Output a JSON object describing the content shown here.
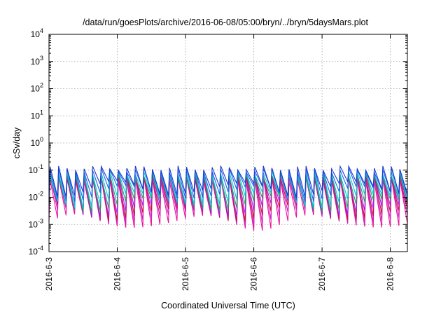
{
  "chart_data": {
    "type": "line",
    "title": "/data/run/goesPlots/archive/2016-06-08/05:00/bryn/../bryn/5daysMars.plot",
    "xlabel": "Coordinated Universal Time (UTC)",
    "ylabel": "cSv/day",
    "y_scale": "log",
    "ylim": [
      0.0001,
      10000
    ],
    "y_ticks": [
      {
        "base": "10",
        "exp": "-4"
      },
      {
        "base": "10",
        "exp": "-3"
      },
      {
        "base": "10",
        "exp": "-2"
      },
      {
        "base": "10",
        "exp": "-1"
      },
      {
        "base": "10",
        "exp": "0"
      },
      {
        "base": "10",
        "exp": "1"
      },
      {
        "base": "10",
        "exp": "2"
      },
      {
        "base": "10",
        "exp": "3"
      },
      {
        "base": "10",
        "exp": "4"
      }
    ],
    "xlim": [
      "2016-06-03 00:00",
      "2016-06-08 06:00"
    ],
    "x_ticks": [
      "2016-6-3",
      "2016-6-4",
      "2016-6-5",
      "2016-6-6",
      "2016-6-7",
      "2016-6-8"
    ],
    "grid": true,
    "legend": "none",
    "sawtooth_period_hours": 3,
    "series": [
      {
        "color": "#e8109a",
        "peak": 0.045,
        "trough": 0.0012
      },
      {
        "color": "#d020c8",
        "peak": 0.055,
        "trough": 0.0018
      },
      {
        "color": "#c8103c",
        "peak": 0.06,
        "trough": 0.0025
      },
      {
        "color": "#a020f0",
        "peak": 0.07,
        "trough": 0.0035
      },
      {
        "color": "#20a060",
        "peak": 0.065,
        "trough": 0.0055
      },
      {
        "color": "#00c8d8",
        "peak": 0.08,
        "trough": 0.008
      },
      {
        "color": "#2060f0",
        "peak": 0.1,
        "trough": 0.014
      },
      {
        "color": "#1a3ad0",
        "peak": 0.12,
        "trough": 0.02
      }
    ]
  }
}
